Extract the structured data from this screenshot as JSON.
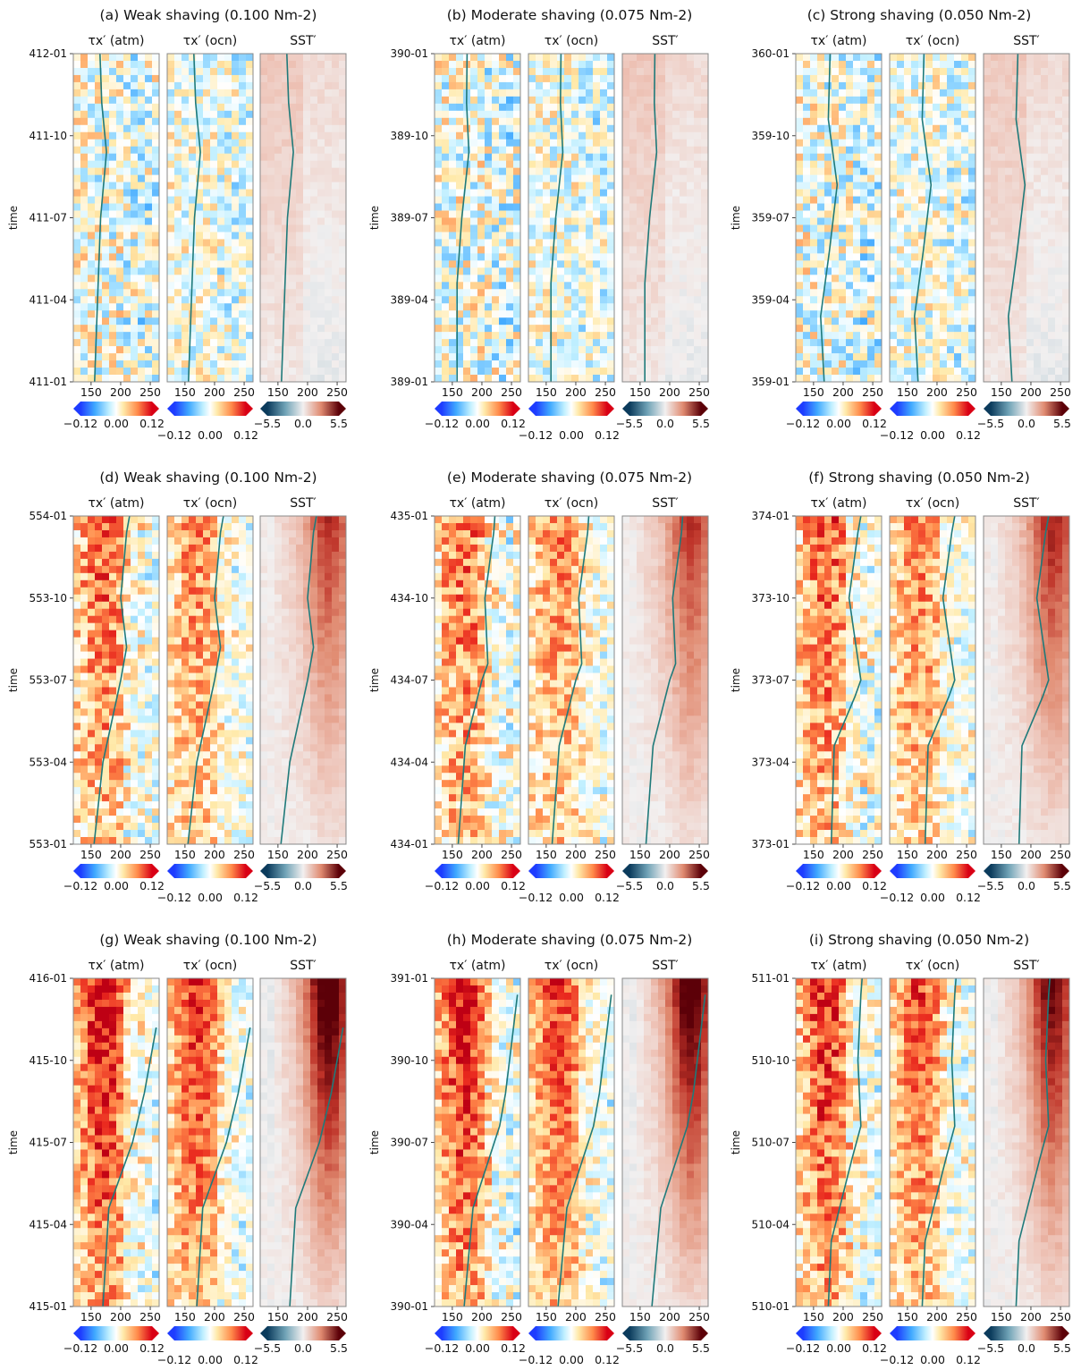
{
  "figure": {
    "subplot_titles": {
      "a": "(a) Weak shaving (0.100 Nm-2)",
      "b": "(b) Moderate shaving (0.075 Nm-2)",
      "c": "(c) Strong shaving (0.050 Nm-2)",
      "d": "(d) Weak shaving (0.100 Nm-2)",
      "e": "(e) Moderate shaving (0.075 Nm-2)",
      "f": "(f) Strong shaving (0.050 Nm-2)",
      "g": "(g) Weak shaving (0.100 Nm-2)",
      "h": "(h) Moderate shaving (0.075 Nm-2)",
      "i": "(i) Strong shaving (0.050 Nm-2)"
    },
    "panel_headers": [
      "τx′ (atm)",
      "τx′ (ocn)",
      "SST′"
    ],
    "ylabel": "time",
    "colors": {
      "contour_line": "#1f7a7a",
      "frame": "#888888"
    }
  },
  "chart_data": [
    {
      "id": "a",
      "type": "heatmap",
      "title": "(a) Weak shaving (0.100 Nm-2)",
      "ylabel": "time",
      "yticks": [
        "411-01",
        "411-04",
        "411-07",
        "411-10",
        "412-01"
      ],
      "xticks": [
        150,
        200,
        250
      ],
      "xlim": [
        120,
        265
      ],
      "intensity": 0.0,
      "line": [
        [
          156,
          0
        ],
        [
          161,
          0.25
        ],
        [
          166,
          0.5
        ],
        [
          176,
          0.7
        ],
        [
          168,
          0.85
        ],
        [
          165,
          1.0
        ]
      ],
      "colorbars": [
        {
          "ticks": [
            "-0.12",
            "0.00",
            "0.12"
          ]
        },
        {
          "ticks": [
            "-0.12",
            "0.00",
            "0.12"
          ]
        },
        {
          "ticks": [
            "-5.5",
            "0.0",
            "5.5"
          ]
        }
      ]
    },
    {
      "id": "b",
      "type": "heatmap",
      "title": "(b) Moderate shaving (0.075 Nm-2)",
      "ylabel": "time",
      "yticks": [
        "389-01",
        "389-04",
        "389-07",
        "389-10",
        "390-01"
      ],
      "xticks": [
        150,
        200,
        250
      ],
      "xlim": [
        120,
        265
      ],
      "intensity": 0.0,
      "line": [
        [
          158,
          0
        ],
        [
          158,
          0.3
        ],
        [
          166,
          0.5
        ],
        [
          178,
          0.7
        ],
        [
          174,
          0.85
        ],
        [
          175,
          1.0
        ]
      ],
      "colorbars": [
        {
          "ticks": [
            "-0.12",
            "0.00",
            "0.12"
          ]
        },
        {
          "ticks": [
            "-0.12",
            "0.00",
            "0.12"
          ]
        },
        {
          "ticks": [
            "-5.5",
            "0.0",
            "5.5"
          ]
        }
      ]
    },
    {
      "id": "c",
      "type": "heatmap",
      "title": "(c) Strong shaving (0.050 Nm-2)",
      "ylabel": "time",
      "yticks": [
        "359-01",
        "359-04",
        "359-07",
        "359-10",
        "360-01"
      ],
      "xticks": [
        150,
        200,
        250
      ],
      "xlim": [
        120,
        265
      ],
      "intensity": 0.0,
      "line": [
        [
          168,
          0
        ],
        [
          162,
          0.2
        ],
        [
          177,
          0.4
        ],
        [
          190,
          0.6
        ],
        [
          175,
          0.8
        ],
        [
          178,
          1.0
        ]
      ],
      "colorbars": [
        {
          "ticks": [
            "-0.12",
            "0.00",
            "0.12"
          ]
        },
        {
          "ticks": [
            "-0.12",
            "0.00",
            "0.12"
          ]
        },
        {
          "ticks": [
            "-5.5",
            "0.0",
            "5.5"
          ]
        }
      ]
    },
    {
      "id": "d",
      "type": "heatmap",
      "title": "(d) Weak shaving (0.100 Nm-2)",
      "ylabel": "time",
      "yticks": [
        "553-01",
        "553-04",
        "553-07",
        "553-10",
        "554-01"
      ],
      "xticks": [
        150,
        200,
        250
      ],
      "xlim": [
        120,
        265
      ],
      "intensity": 0.55,
      "line": [
        [
          155,
          0
        ],
        [
          170,
          0.25
        ],
        [
          200,
          0.5
        ],
        [
          210,
          0.6
        ],
        [
          200,
          0.75
        ],
        [
          210,
          0.95
        ],
        [
          215,
          1.0
        ]
      ],
      "colorbars": [
        {
          "ticks": [
            "-0.12",
            "0.00",
            "0.12"
          ]
        },
        {
          "ticks": [
            "-0.12",
            "0.00",
            "0.12"
          ]
        },
        {
          "ticks": [
            "-5.5",
            "0.0",
            "5.5"
          ]
        }
      ]
    },
    {
      "id": "e",
      "type": "heatmap",
      "title": "(e) Moderate shaving (0.075 Nm-2)",
      "ylabel": "time",
      "yticks": [
        "434-01",
        "434-04",
        "434-07",
        "434-10",
        "435-01"
      ],
      "xticks": [
        150,
        200,
        250
      ],
      "xlim": [
        120,
        265
      ],
      "intensity": 0.55,
      "line": [
        [
          160,
          0
        ],
        [
          172,
          0.3
        ],
        [
          200,
          0.5
        ],
        [
          210,
          0.55
        ],
        [
          205,
          0.75
        ],
        [
          220,
          0.95
        ],
        [
          222,
          1.0
        ]
      ],
      "colorbars": [
        {
          "ticks": [
            "-0.12",
            "0.00",
            "0.12"
          ]
        },
        {
          "ticks": [
            "-0.12",
            "0.00",
            "0.12"
          ]
        },
        {
          "ticks": [
            "-5.5",
            "0.0",
            "5.5"
          ]
        }
      ]
    },
    {
      "id": "f",
      "type": "heatmap",
      "title": "(f) Strong shaving (0.050 Nm-2)",
      "ylabel": "time",
      "yticks": [
        "373-01",
        "373-04",
        "373-07",
        "373-10",
        "374-01"
      ],
      "xticks": [
        150,
        200,
        250
      ],
      "xlim": [
        120,
        265
      ],
      "intensity": 0.6,
      "line": [
        [
          180,
          0
        ],
        [
          185,
          0.3
        ],
        [
          220,
          0.45
        ],
        [
          230,
          0.5
        ],
        [
          210,
          0.75
        ],
        [
          225,
          0.95
        ],
        [
          230,
          1.0
        ]
      ],
      "colorbars": [
        {
          "ticks": [
            "-0.12",
            "0.00",
            "0.12"
          ]
        },
        {
          "ticks": [
            "-0.12",
            "0.00",
            "0.12"
          ]
        },
        {
          "ticks": [
            "-5.5",
            "0.0",
            "5.5"
          ]
        }
      ]
    },
    {
      "id": "g",
      "type": "heatmap",
      "title": "(g) Weak shaving (0.100 Nm-2)",
      "ylabel": "time",
      "yticks": [
        "415-01",
        "415-04",
        "415-07",
        "415-10",
        "416-01"
      ],
      "xticks": [
        150,
        200,
        250
      ],
      "xlim": [
        120,
        265
      ],
      "intensity": 0.9,
      "line": [
        [
          170,
          0
        ],
        [
          180,
          0.3
        ],
        [
          220,
          0.5
        ],
        [
          240,
          0.65
        ],
        [
          255,
          0.8
        ],
        [
          260,
          0.85
        ]
      ],
      "colorbars": [
        {
          "ticks": [
            "-0.12",
            "0.00",
            "0.12"
          ]
        },
        {
          "ticks": [
            "-0.12",
            "0.00",
            "0.12"
          ]
        },
        {
          "ticks": [
            "-5.5",
            "0.0",
            "5.5"
          ]
        }
      ]
    },
    {
      "id": "h",
      "type": "heatmap",
      "title": "(h) Moderate shaving (0.075 Nm-2)",
      "ylabel": "time",
      "yticks": [
        "390-01",
        "390-04",
        "390-07",
        "390-10",
        "391-01"
      ],
      "xticks": [
        150,
        200,
        250
      ],
      "xlim": [
        120,
        265
      ],
      "intensity": 0.85,
      "line": [
        [
          170,
          0
        ],
        [
          185,
          0.3
        ],
        [
          230,
          0.55
        ],
        [
          240,
          0.65
        ],
        [
          250,
          0.8
        ],
        [
          260,
          0.95
        ]
      ],
      "colorbars": [
        {
          "ticks": [
            "-0.12",
            "0.00",
            "0.12"
          ]
        },
        {
          "ticks": [
            "-0.12",
            "0.00",
            "0.12"
          ]
        },
        {
          "ticks": [
            "-5.5",
            "0.0",
            "5.5"
          ]
        }
      ]
    },
    {
      "id": "i",
      "type": "heatmap",
      "title": "(i) Strong shaving (0.050 Nm-2)",
      "ylabel": "time",
      "yticks": [
        "510-01",
        "510-04",
        "510-07",
        "510-10",
        "511-01"
      ],
      "xticks": [
        150,
        200,
        250
      ],
      "xlim": [
        120,
        265
      ],
      "intensity": 0.75,
      "line": [
        [
          175,
          0
        ],
        [
          180,
          0.2
        ],
        [
          215,
          0.45
        ],
        [
          230,
          0.55
        ],
        [
          225,
          0.75
        ],
        [
          230,
          0.95
        ],
        [
          232,
          1.0
        ]
      ],
      "colorbars": [
        {
          "ticks": [
            "-0.12",
            "0.00",
            "0.12"
          ]
        },
        {
          "ticks": [
            "-0.12",
            "0.00",
            "0.12"
          ]
        },
        {
          "ticks": [
            "-5.5",
            "0.0",
            "5.5"
          ]
        }
      ]
    }
  ]
}
